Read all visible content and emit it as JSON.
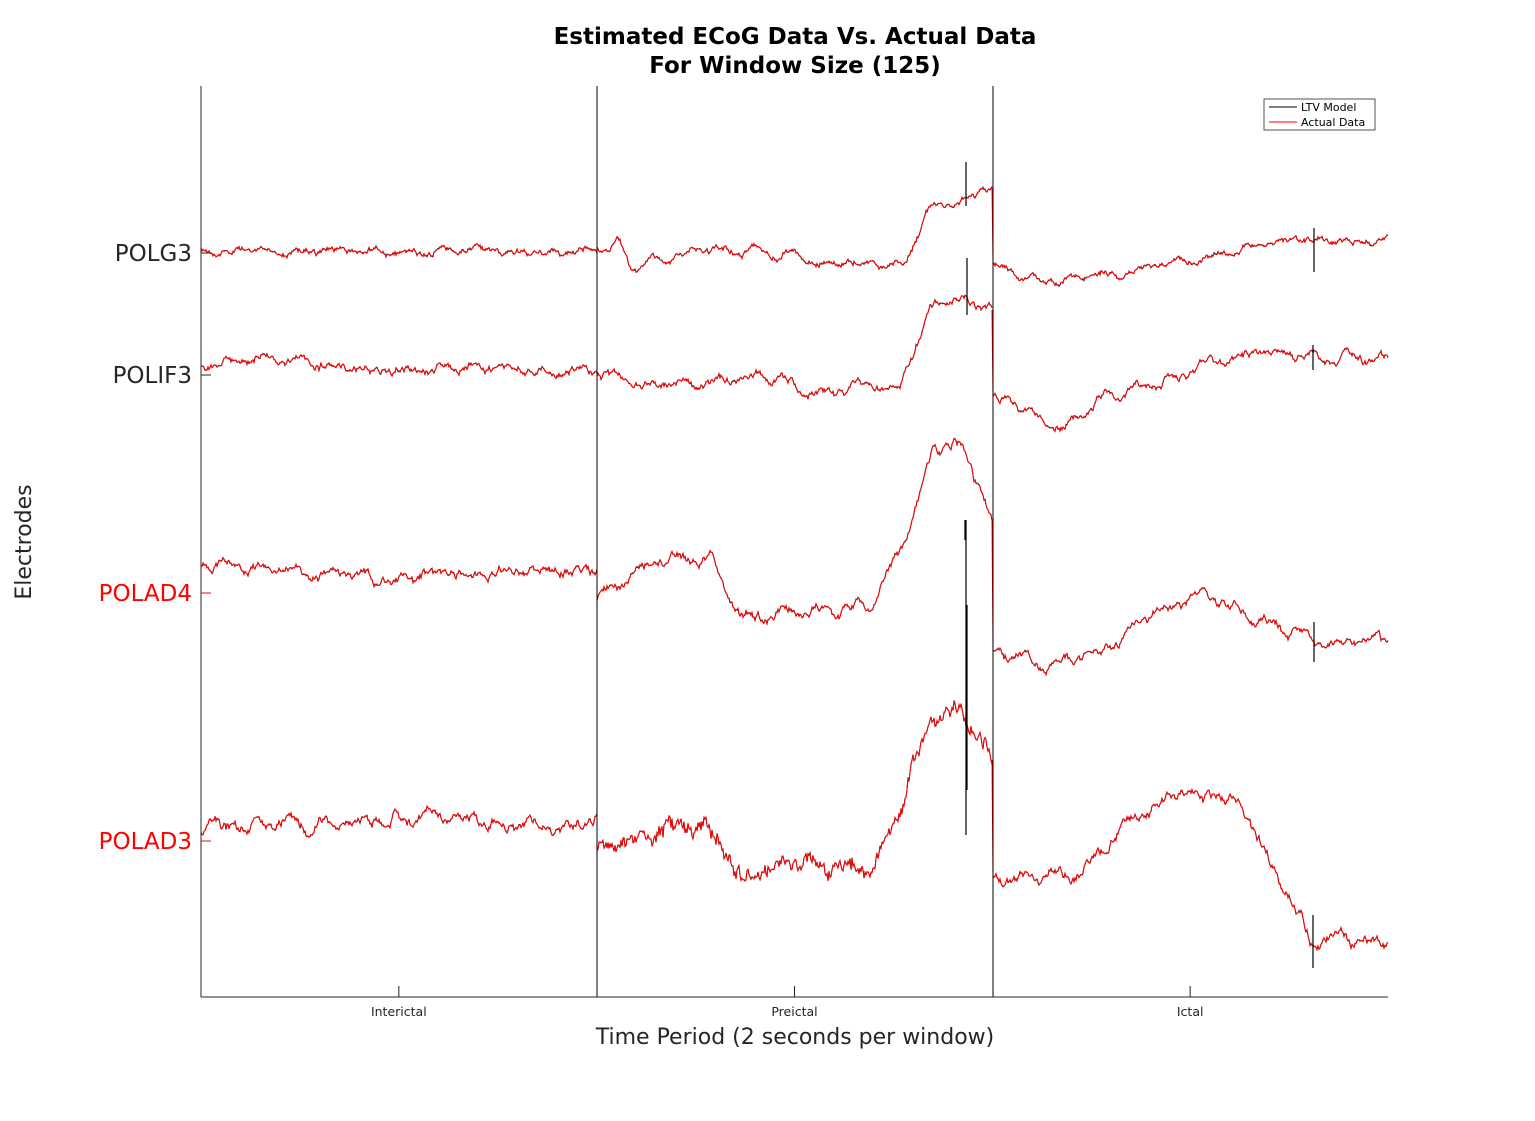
{
  "chart_data": {
    "type": "line",
    "title": "Estimated ECoG Data Vs. Actual Data",
    "subtitle": "For Window Size (125)",
    "xlabel": "Time Period (2 seconds per window)",
    "ylabel": "Electrodes",
    "x_categories": [
      "Interictal",
      "Preictal",
      "Ictal"
    ],
    "electrodes": [
      {
        "name": "POLG3",
        "color": "#262626"
      },
      {
        "name": "POLIF3",
        "color": "#262626"
      },
      {
        "name": "POLAD4",
        "color": "#ff0000"
      },
      {
        "name": "POLAD3",
        "color": "#ff0000"
      }
    ],
    "series": [
      {
        "name": "LTV Model",
        "color": "#000000"
      },
      {
        "name": "Actual Data",
        "color": "#ff0000"
      }
    ],
    "legend_position": "top-right",
    "grid": false
  }
}
